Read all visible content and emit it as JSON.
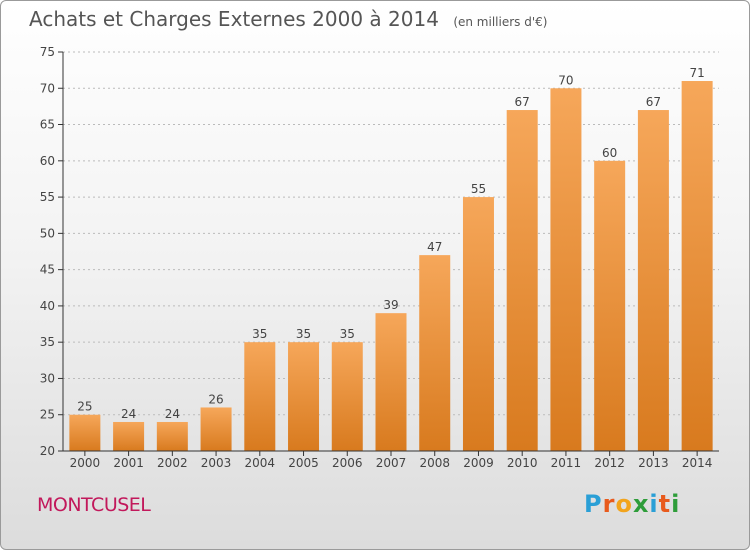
{
  "title": "Achats et Charges Externes 2000 à 2014",
  "unit_label": "(en milliers d'€)",
  "commune": "MONTCUSEL",
  "brand": {
    "letters": [
      "P",
      "r",
      "o",
      "x",
      "i",
      "t",
      "i"
    ],
    "colors": [
      "#2a9fd6",
      "#e85a1c",
      "#f2a41c",
      "#2e9d3a",
      "#2a9fd6",
      "#e85a1c",
      "#2e9d3a"
    ]
  },
  "colors": {
    "bar_top": "#f6a75a",
    "bar_bottom": "#d87a1e",
    "axis": "#333333",
    "grid": "#bbbbbb",
    "text": "#444444"
  },
  "chart_data": {
    "type": "bar",
    "categories": [
      "2000",
      "2001",
      "2002",
      "2003",
      "2004",
      "2005",
      "2006",
      "2007",
      "2008",
      "2009",
      "2010",
      "2011",
      "2012",
      "2013",
      "2014"
    ],
    "values": [
      25,
      24,
      24,
      26,
      35,
      35,
      35,
      39,
      47,
      55,
      67,
      70,
      60,
      67,
      71
    ],
    "ylim": [
      20,
      75
    ],
    "yticks": [
      20,
      25,
      30,
      35,
      40,
      45,
      50,
      55,
      60,
      65,
      70,
      75
    ],
    "grid": true,
    "xlabel": "",
    "ylabel": ""
  }
}
